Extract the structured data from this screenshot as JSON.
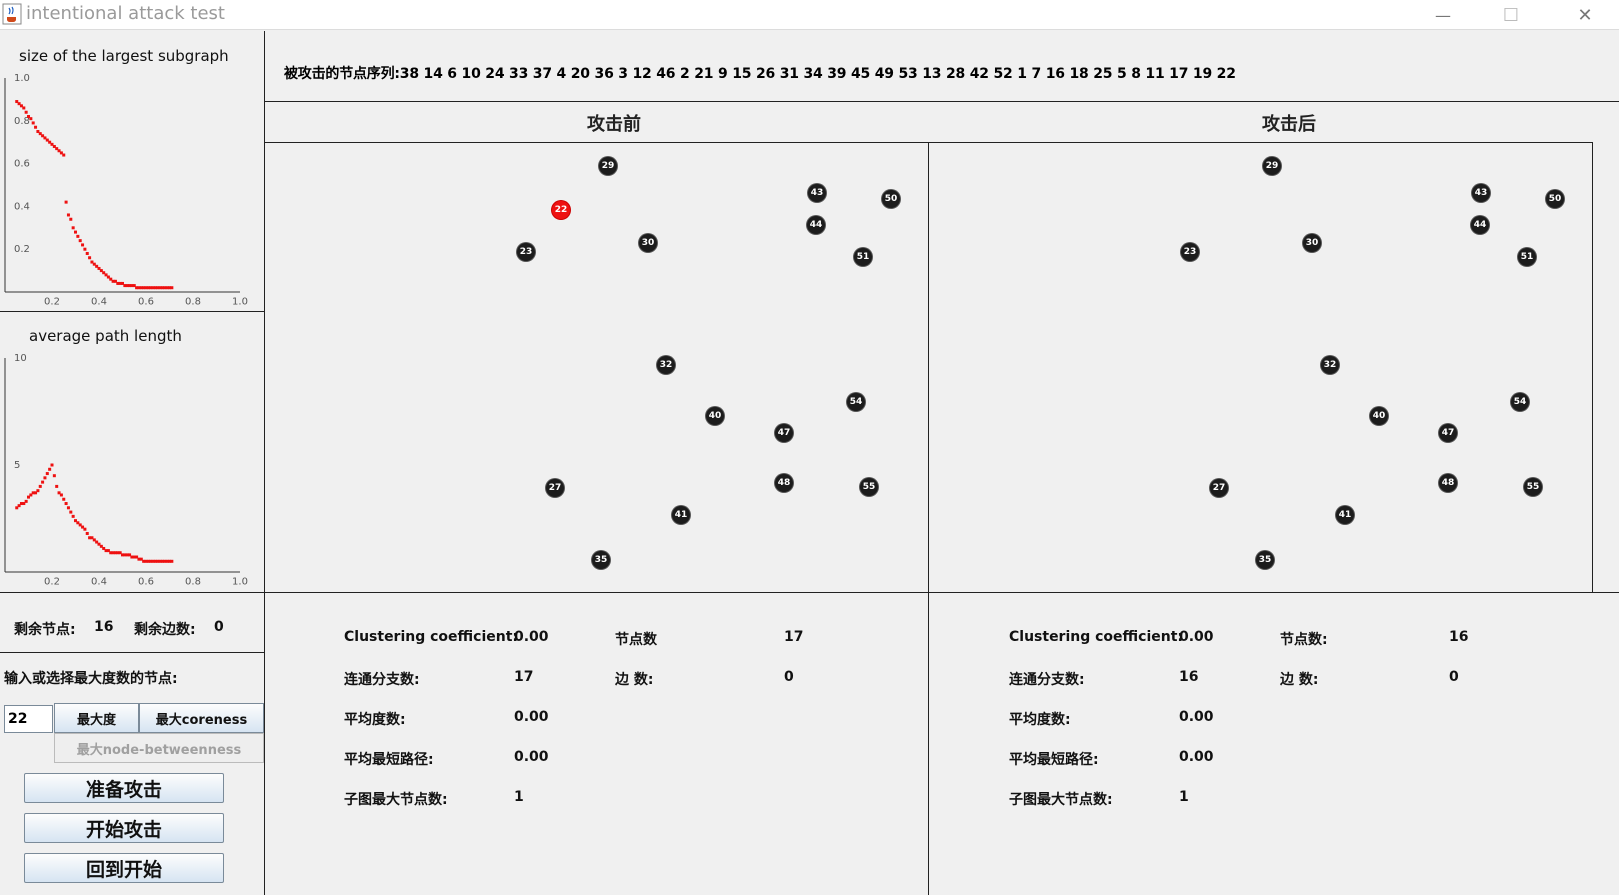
{
  "window": {
    "title": "intentional attack test",
    "minimize_glyph": "—",
    "maximize_glyph": "☐",
    "close_glyph": "✕"
  },
  "sequence": {
    "label": "被攻击的节点序列:38 14 6 10 24 33 37 4 20 36 3 12 46 2 21 9 15 26 31 34 39 45 49 53 13 28 42 52 1 7 16 18 25 5 8 11 17 19 22"
  },
  "graphs": {
    "before_title": "攻击前",
    "after_title": "攻击后",
    "highlight_color": "#ee1111",
    "before_nodes": [
      {
        "id": "29"
      },
      {
        "id": "43"
      },
      {
        "id": "50"
      },
      {
        "id": "22",
        "highlight": true
      },
      {
        "id": "44"
      },
      {
        "id": "30"
      },
      {
        "id": "23"
      },
      {
        "id": "51"
      },
      {
        "id": "32"
      },
      {
        "id": "54"
      },
      {
        "id": "40"
      },
      {
        "id": "47"
      },
      {
        "id": "48"
      },
      {
        "id": "55"
      },
      {
        "id": "27"
      },
      {
        "id": "41"
      },
      {
        "id": "35"
      }
    ],
    "after_nodes": [
      {
        "id": "29"
      },
      {
        "id": "43"
      },
      {
        "id": "50"
      },
      {
        "id": "44"
      },
      {
        "id": "30"
      },
      {
        "id": "23"
      },
      {
        "id": "51"
      },
      {
        "id": "32"
      },
      {
        "id": "54"
      },
      {
        "id": "40"
      },
      {
        "id": "47"
      },
      {
        "id": "48"
      },
      {
        "id": "55"
      },
      {
        "id": "27"
      },
      {
        "id": "41"
      },
      {
        "id": "35"
      }
    ]
  },
  "chart_data": [
    {
      "type": "scatter",
      "title": "size of the largest subgraph",
      "xlabel": "",
      "ylabel": "",
      "xlim": [
        0,
        1.0
      ],
      "ylim": [
        0,
        1.0
      ],
      "xticks": [
        "0.2",
        "0.4",
        "0.6",
        "0.8",
        "1.0"
      ],
      "yticks": [
        "0.2",
        "0.4",
        "0.6",
        "0.8",
        "1.0"
      ],
      "color": "#ee1111",
      "x": [
        0.05,
        0.06,
        0.07,
        0.08,
        0.09,
        0.1,
        0.11,
        0.12,
        0.13,
        0.14,
        0.15,
        0.16,
        0.17,
        0.18,
        0.19,
        0.2,
        0.21,
        0.22,
        0.23,
        0.24,
        0.25,
        0.26,
        0.27,
        0.28,
        0.29,
        0.3,
        0.31,
        0.32,
        0.33,
        0.34,
        0.35,
        0.36,
        0.37,
        0.38,
        0.39,
        0.4,
        0.41,
        0.42,
        0.43,
        0.44,
        0.45,
        0.46,
        0.47,
        0.48,
        0.49,
        0.5,
        0.51,
        0.52,
        0.53,
        0.54,
        0.55,
        0.56,
        0.57,
        0.58,
        0.59,
        0.6,
        0.61,
        0.62,
        0.63,
        0.64,
        0.65,
        0.66,
        0.67,
        0.68,
        0.69,
        0.7,
        0.71
      ],
      "y": [
        0.89,
        0.88,
        0.87,
        0.86,
        0.84,
        0.82,
        0.81,
        0.79,
        0.77,
        0.75,
        0.74,
        0.73,
        0.72,
        0.71,
        0.7,
        0.69,
        0.68,
        0.67,
        0.66,
        0.65,
        0.64,
        0.42,
        0.36,
        0.34,
        0.3,
        0.28,
        0.26,
        0.24,
        0.22,
        0.2,
        0.18,
        0.16,
        0.14,
        0.13,
        0.12,
        0.11,
        0.1,
        0.09,
        0.08,
        0.07,
        0.06,
        0.05,
        0.05,
        0.04,
        0.04,
        0.04,
        0.03,
        0.03,
        0.03,
        0.03,
        0.03,
        0.02,
        0.02,
        0.02,
        0.02,
        0.02,
        0.02,
        0.02,
        0.02,
        0.02,
        0.02,
        0.02,
        0.02,
        0.02,
        0.02,
        0.02,
        0.02
      ]
    },
    {
      "type": "scatter",
      "title": "average path length",
      "xlabel": "",
      "ylabel": "",
      "xlim": [
        0,
        1.0
      ],
      "ylim": [
        0,
        10
      ],
      "xticks": [
        "0.2",
        "0.4",
        "0.6",
        "0.8",
        "1.0"
      ],
      "yticks": [
        "5",
        "10"
      ],
      "color": "#ee1111",
      "x": [
        0.05,
        0.06,
        0.07,
        0.08,
        0.09,
        0.1,
        0.11,
        0.12,
        0.13,
        0.14,
        0.15,
        0.16,
        0.17,
        0.18,
        0.19,
        0.2,
        0.21,
        0.22,
        0.23,
        0.24,
        0.25,
        0.26,
        0.27,
        0.28,
        0.29,
        0.3,
        0.31,
        0.32,
        0.33,
        0.34,
        0.35,
        0.36,
        0.37,
        0.38,
        0.39,
        0.4,
        0.41,
        0.42,
        0.43,
        0.44,
        0.45,
        0.46,
        0.47,
        0.48,
        0.49,
        0.5,
        0.51,
        0.52,
        0.53,
        0.54,
        0.55,
        0.56,
        0.57,
        0.58,
        0.59,
        0.6,
        0.61,
        0.62,
        0.63,
        0.64,
        0.65,
        0.66,
        0.67,
        0.68,
        0.69,
        0.7,
        0.71
      ],
      "y": [
        3.0,
        3.1,
        3.2,
        3.2,
        3.3,
        3.5,
        3.6,
        3.7,
        3.7,
        3.8,
        4.0,
        4.2,
        4.4,
        4.6,
        4.8,
        5.0,
        4.5,
        4.0,
        3.7,
        3.6,
        3.4,
        3.2,
        3.0,
        2.8,
        2.6,
        2.4,
        2.3,
        2.2,
        2.1,
        2.0,
        1.8,
        1.6,
        1.6,
        1.5,
        1.4,
        1.3,
        1.2,
        1.1,
        1.0,
        1.0,
        0.9,
        0.9,
        0.9,
        0.9,
        0.9,
        0.8,
        0.8,
        0.8,
        0.8,
        0.7,
        0.7,
        0.7,
        0.6,
        0.6,
        0.5,
        0.5,
        0.5,
        0.5,
        0.5,
        0.5,
        0.5,
        0.5,
        0.5,
        0.5,
        0.5,
        0.5,
        0.5
      ]
    }
  ],
  "remaining": {
    "nodes_label": "剩余节点:",
    "nodes_value": "16",
    "edges_label": "剩余边数:",
    "edges_value": "0"
  },
  "controls": {
    "prompt": "输入或选择最大度数的节点:",
    "input_value": "22",
    "max_degree": "最大度",
    "max_coreness": "最大coreness",
    "max_betweenness": "最大node-betweenness",
    "prepare": "准备攻击",
    "start": "开始攻击",
    "reset": "回到开始"
  },
  "stats_before": {
    "cc_label": "Clustering coefficient:",
    "cc_value": "0.00",
    "nodes_label": "节点数",
    "nodes_value": "17",
    "comp_label": "连通分支数:",
    "comp_value": "17",
    "edges_label": "边 数:",
    "edges_value": "0",
    "deg_label": "平均度数:",
    "deg_value": "0.00",
    "path_label": "平均最短路径:",
    "path_value": "0.00",
    "max_label": "子图最大节点数:",
    "max_value": "1"
  },
  "stats_after": {
    "cc_label": "Clustering coefficient:",
    "cc_value": "0.00",
    "nodes_label": "节点数:",
    "nodes_value": "16",
    "comp_label": "连通分支数:",
    "comp_value": "16",
    "edges_label": "边 数:",
    "edges_value": "0",
    "deg_label": "平均度数:",
    "deg_value": "0.00",
    "path_label": "平均最短路径:",
    "path_value": "0.00",
    "max_label": "子图最大节点数:",
    "max_value": "1"
  }
}
